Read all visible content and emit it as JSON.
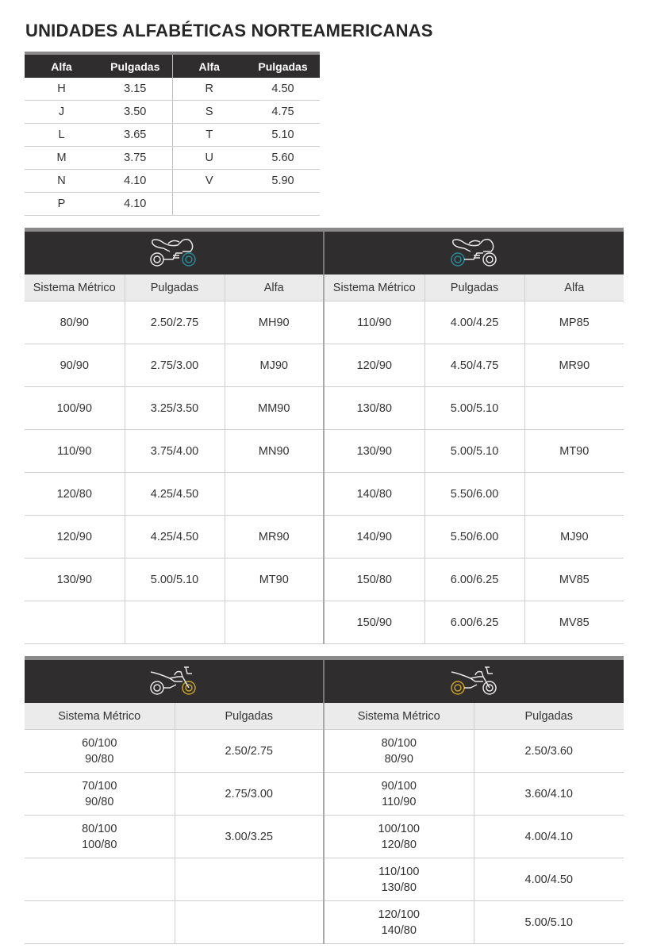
{
  "title": "UNIDADES ALFABÉTICAS NORTEAMERICANAS",
  "colors": {
    "header_bg": "#2f2d2e",
    "subheader_bg": "#ebebeb",
    "front_wheel_accent": "#2a8a9a",
    "dirt_wheel_accent": "#c9a227"
  },
  "alpha_table": {
    "headers": [
      "Alfa",
      "Pulgadas",
      "Alfa",
      "Pulgadas"
    ],
    "rows": [
      [
        "H",
        "3.15",
        "R",
        "4.50"
      ],
      [
        "J",
        "3.50",
        "S",
        "4.75"
      ],
      [
        "L",
        "3.65",
        "T",
        "5.10"
      ],
      [
        "M",
        "3.75",
        "U",
        "5.60"
      ],
      [
        "N",
        "4.10",
        "V",
        "5.90"
      ],
      [
        "P",
        "4.10",
        "",
        ""
      ]
    ]
  },
  "street_table": {
    "left_icon": "sport-motorcycle-front-wheel-icon",
    "right_icon": "sport-motorcycle-rear-wheel-icon",
    "headers": [
      "Sistema Métrico",
      "Pulgadas",
      "Alfa",
      "Sistema Métrico",
      "Pulgadas",
      "Alfa"
    ],
    "rows": [
      [
        "80/90",
        "2.50/2.75",
        "MH90",
        "110/90",
        "4.00/4.25",
        "MP85"
      ],
      [
        "90/90",
        "2.75/3.00",
        "MJ90",
        "120/90",
        "4.50/4.75",
        "MR90"
      ],
      [
        "100/90",
        "3.25/3.50",
        "MM90",
        "130/80",
        "5.00/5.10",
        ""
      ],
      [
        "110/90",
        "3.75/4.00",
        "MN90",
        "130/90",
        "5.00/5.10",
        "MT90"
      ],
      [
        "120/80",
        "4.25/4.50",
        "",
        "140/80",
        "5.50/6.00",
        ""
      ],
      [
        "120/90",
        "4.25/4.50",
        "MR90",
        "140/90",
        "5.50/6.00",
        "MJ90"
      ],
      [
        "130/90",
        "5.00/5.10",
        "MT90",
        "150/80",
        "6.00/6.25",
        "MV85"
      ],
      [
        "",
        "",
        "",
        "150/90",
        "6.00/6.25",
        "MV85"
      ]
    ]
  },
  "offroad_table": {
    "left_icon": "dirt-motorcycle-front-wheel-icon",
    "right_icon": "dirt-motorcycle-rear-wheel-icon",
    "headers": [
      "Sistema Métrico",
      "Pulgadas",
      "Sistema Métrico",
      "Pulgadas"
    ],
    "rows": [
      [
        [
          "60/100",
          "90/80"
        ],
        "2.50/2.75",
        [
          "80/100",
          "80/90"
        ],
        "2.50/3.60"
      ],
      [
        [
          "70/100",
          "90/80"
        ],
        "2.75/3.00",
        [
          "90/100",
          "110/90"
        ],
        "3.60/4.10"
      ],
      [
        [
          "80/100",
          "100/80"
        ],
        "3.00/3.25",
        [
          "100/100",
          "120/80"
        ],
        "4.00/4.10"
      ],
      [
        [
          "",
          ""
        ],
        "",
        [
          "110/100",
          "130/80"
        ],
        "4.00/4.50"
      ],
      [
        [
          "",
          ""
        ],
        "",
        [
          "120/100",
          "140/80"
        ],
        "5.00/5.10"
      ]
    ]
  }
}
